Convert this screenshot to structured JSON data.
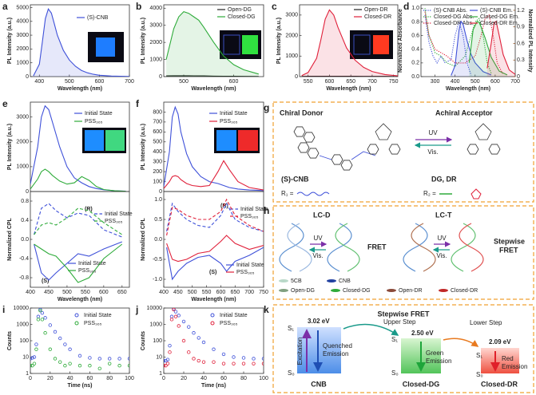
{
  "chart_data": [
    {
      "type": "line",
      "panel": "a",
      "xlabel": "Wavelength (nm)",
      "ylabel": "PL Intensity (a.u.)",
      "xlim": [
        370,
        700
      ],
      "xticks": [
        400,
        500,
        600,
        700
      ],
      "ylim": [
        0,
        5200
      ],
      "yticks": [
        0,
        1000,
        2000,
        3000,
        4000,
        5000
      ],
      "x": [
        380,
        400,
        410,
        420,
        430,
        440,
        450,
        460,
        480,
        500,
        520,
        540,
        560,
        580,
        600,
        640,
        700
      ],
      "series": [
        {
          "name": "(S)-CNB",
          "color": "#3f51d9",
          "fill": true,
          "values": [
            50,
            900,
            2500,
            4200,
            4900,
            4600,
            3800,
            3000,
            1900,
            1200,
            750,
            450,
            280,
            170,
            100,
            40,
            10
          ]
        }
      ]
    },
    {
      "type": "line",
      "panel": "b",
      "xlabel": "Wavelength (nm)",
      "ylabel": "PL Intensity (a.u.)",
      "xlim": [
        460,
        660
      ],
      "xticks": [
        500,
        600
      ],
      "ylim": [
        0,
        4200
      ],
      "yticks": [
        0,
        1000,
        2000,
        3000,
        4000
      ],
      "x": [
        465,
        480,
        490,
        500,
        510,
        520,
        530,
        540,
        560,
        580,
        600,
        620,
        650
      ],
      "series": [
        {
          "name": "Open-DG",
          "color": "#222222",
          "values": [
            40,
            50,
            50,
            50,
            50,
            45,
            40,
            40,
            30,
            25,
            20,
            15,
            10
          ]
        },
        {
          "name": "Closed-DG",
          "color": "#2eab3a",
          "fill": true,
          "values": [
            1000,
            2800,
            3500,
            3800,
            3700,
            3500,
            3300,
            2900,
            2000,
            1200,
            700,
            400,
            150
          ]
        }
      ]
    },
    {
      "type": "line",
      "panel": "c",
      "xlabel": "Wavelength (nm)",
      "ylabel": "PL Intensity (a.u.)",
      "xlim": [
        530,
        760
      ],
      "xticks": [
        550,
        600,
        650,
        700,
        750
      ],
      "ylim": [
        0,
        3500
      ],
      "yticks": [
        0,
        1000,
        2000,
        3000
      ],
      "x": [
        535,
        550,
        570,
        580,
        590,
        600,
        610,
        620,
        640,
        660,
        680,
        700,
        730,
        760
      ],
      "series": [
        {
          "name": "Open-DR",
          "color": "#222222",
          "values": [
            10,
            15,
            20,
            20,
            20,
            20,
            20,
            20,
            15,
            15,
            10,
            10,
            10,
            5
          ]
        },
        {
          "name": "Closed-DR",
          "color": "#e0203a",
          "fill": true,
          "values": [
            50,
            200,
            900,
            1800,
            2800,
            3250,
            3000,
            2400,
            1400,
            800,
            450,
            250,
            100,
            40
          ]
        }
      ]
    },
    {
      "type": "line",
      "panel": "d",
      "xlabel": "Wavelength (nm)",
      "ylabel": "Normalized Absorbance",
      "y2label": "Normalized PL Intensity",
      "xlim": [
        230,
        700
      ],
      "xticks": [
        300,
        400,
        500,
        600,
        700
      ],
      "ylim": [
        0,
        1.05
      ],
      "yticks": [
        {
          "value": 0,
          "label": "0.0"
        },
        0.2,
        0.4,
        0.6,
        0.8,
        {
          "value": 1,
          "label": "1.0"
        }
      ],
      "y2lim": [
        0,
        1.3
      ],
      "y2ticks": [
        0,
        0.3,
        0.6,
        0.9,
        1.2
      ],
      "series": [
        {
          "name": "(S)-CNB Abs.",
          "color": "#3f51d9",
          "dash": "dotted",
          "x": [
            250,
            270,
            290,
            310,
            330,
            350,
            380,
            400,
            420,
            440,
            460,
            480
          ],
          "values": [
            0.9,
            0.5,
            0.3,
            0.2,
            0.3,
            0.2,
            0.25,
            0.6,
            0.8,
            0.6,
            0.2,
            0.02
          ]
        },
        {
          "name": "Closed-DG Abs.",
          "color": "#2eab3a",
          "dash": "dotted",
          "x": [
            250,
            270,
            300,
            330,
            360,
            400,
            450,
            480,
            500,
            520,
            540,
            560,
            580
          ],
          "values": [
            1.0,
            0.6,
            0.35,
            0.3,
            0.2,
            0.15,
            0.3,
            0.6,
            0.8,
            0.85,
            0.6,
            0.2,
            0.05
          ]
        },
        {
          "name": "Closed-DR Abs.",
          "color": "#e0203a",
          "dash": "dotted",
          "x": [
            250,
            270,
            300,
            330,
            360,
            400,
            450,
            500,
            530,
            550,
            570,
            590,
            610,
            640
          ],
          "values": [
            0.95,
            0.6,
            0.4,
            0.35,
            0.3,
            0.2,
            0.2,
            0.3,
            0.6,
            0.85,
            0.9,
            0.6,
            0.2,
            0.03
          ]
        },
        {
          "name": "(S)-CNB Em.",
          "color": "#3f51d9",
          "fill": true,
          "axis": "y2",
          "x": [
            380,
            400,
            420,
            430,
            440,
            460,
            480,
            500,
            540,
            580
          ],
          "values": [
            0.02,
            0.2,
            0.85,
            1.0,
            0.95,
            0.65,
            0.4,
            0.25,
            0.09,
            0.03
          ]
        },
        {
          "name": "Closed-DG Em.",
          "color": "#2eab3a",
          "fill": true,
          "axis": "y2",
          "x": [
            470,
            490,
            510,
            520,
            530,
            550,
            580,
            620,
            660
          ],
          "values": [
            0.25,
            0.85,
            1.0,
            0.98,
            0.9,
            0.7,
            0.35,
            0.1,
            0.03
          ]
        },
        {
          "name": "Closed-DR Em.",
          "color": "#e0203a",
          "fill": true,
          "axis": "y2",
          "x": [
            560,
            580,
            595,
            605,
            620,
            640,
            670,
            700
          ],
          "values": [
            0.15,
            0.6,
            0.98,
            1.0,
            0.75,
            0.4,
            0.12,
            0.04
          ]
        }
      ]
    },
    {
      "type": "line",
      "panel": "e",
      "ylabel": "PL Intensity (a.u.)",
      "xlim": [
        400,
        670
      ],
      "ylim": [
        0,
        3600
      ],
      "yticks": [
        0,
        1000,
        2000,
        3000
      ],
      "x": [
        400,
        420,
        430,
        440,
        450,
        460,
        480,
        500,
        520,
        540,
        560,
        580,
        600,
        630,
        660
      ],
      "series": [
        {
          "name": "Initial State",
          "color": "#3f51d9",
          "values": [
            300,
            1800,
            3000,
            3450,
            3300,
            2800,
            1800,
            1000,
            550,
            350,
            200,
            120,
            70,
            30,
            15
          ]
        },
        {
          "name": "PSS₃₆₅",
          "color": "#2eab3a",
          "values": [
            100,
            500,
            800,
            900,
            800,
            650,
            420,
            300,
            350,
            600,
            450,
            200,
            80,
            30,
            10
          ]
        }
      ]
    },
    {
      "type": "line",
      "xlabel": "Wavelength (nm)",
      "ylabel": "Normalized CPL",
      "xlim": [
        400,
        670
      ],
      "xticks": [
        400,
        450,
        500,
        550,
        600,
        650
      ],
      "ylim": [
        -1.0,
        1.0
      ],
      "yticks": [
        -0.8,
        -0.4,
        {
          "value": 0,
          "label": "0.0"
        },
        0.4,
        0.8
      ],
      "annotations": [
        "(R)",
        "(S)"
      ],
      "x": [
        410,
        430,
        450,
        470,
        500,
        530,
        560,
        600,
        650
      ],
      "series": [
        {
          "name": "Initial State",
          "color": "#3f51d9",
          "dash": "dashed",
          "values": [
            0.1,
            0.65,
            0.75,
            0.6,
            0.45,
            0.55,
            0.5,
            0.2,
            0.05
          ]
        },
        {
          "name": "PSS₃₆₅",
          "color": "#2eab3a",
          "dash": "dashed",
          "values": [
            0.1,
            0.3,
            0.35,
            0.3,
            0.45,
            0.65,
            0.6,
            0.35,
            0.1
          ]
        },
        {
          "name": "Initial State",
          "color": "#3f51d9",
          "values": [
            -0.1,
            -0.7,
            -0.85,
            -0.7,
            -0.5,
            -0.3,
            -0.35,
            -0.2,
            -0.05
          ]
        },
        {
          "name": "PSS₃₆₅",
          "color": "#2eab3a",
          "values": [
            -0.1,
            -0.2,
            -0.3,
            -0.35,
            -0.6,
            -0.9,
            -0.8,
            -0.4,
            -0.1
          ]
        }
      ]
    },
    {
      "type": "line",
      "panel": "f",
      "ylabel": "PL Intensity (a.u.)",
      "xlim": [
        400,
        750
      ],
      "ylim": [
        0,
        900
      ],
      "yticks": [
        0,
        100,
        200,
        300,
        400,
        500,
        600,
        700,
        800
      ],
      "x": [
        400,
        420,
        430,
        440,
        450,
        460,
        480,
        500,
        530,
        560,
        590,
        610,
        630,
        660,
        700,
        750
      ],
      "series": [
        {
          "name": "Initial State",
          "color": "#3f51d9",
          "values": [
            50,
            400,
            750,
            850,
            780,
            600,
            380,
            250,
            150,
            100,
            80,
            60,
            40,
            25,
            15,
            10
          ]
        },
        {
          "name": "PSS₃₆₅",
          "color": "#e0203a",
          "values": [
            30,
            100,
            150,
            160,
            150,
            120,
            80,
            60,
            50,
            60,
            200,
            310,
            220,
            100,
            40,
            15
          ]
        }
      ]
    },
    {
      "type": "line",
      "xlabel": "Wavelength (nm)",
      "ylabel": "Normalized CPL",
      "xlim": [
        400,
        750
      ],
      "xticks": [
        400,
        450,
        500,
        550,
        600,
        650,
        700,
        750
      ],
      "ylim": [
        -1.2,
        1.2
      ],
      "yticks": [
        {
          "value": -1,
          "label": "-1.0"
        },
        -0.5,
        {
          "value": 0,
          "label": "0.0"
        },
        0.5,
        {
          "value": 1,
          "label": "1.0"
        }
      ],
      "annotations": [
        "(R)",
        "(S)"
      ],
      "x": [
        410,
        430,
        450,
        480,
        520,
        560,
        600,
        620,
        650,
        700,
        750
      ],
      "series": [
        {
          "name": "Initial State",
          "color": "#3f51d9",
          "dash": "dashed",
          "values": [
            0.2,
            0.9,
            0.7,
            0.5,
            0.35,
            0.3,
            0.6,
            0.9,
            0.5,
            0.3,
            0.2
          ]
        },
        {
          "name": "PSS₃₆₅",
          "color": "#e0203a",
          "dash": "dashed",
          "values": [
            0.1,
            0.8,
            0.75,
            0.6,
            0.5,
            0.5,
            0.7,
            1.0,
            0.6,
            0.35,
            0.2
          ]
        },
        {
          "name": "Initial State",
          "color": "#3f51d9",
          "values": [
            -0.2,
            -1.0,
            -0.8,
            -0.6,
            -0.45,
            -0.4,
            -0.6,
            -0.8,
            -0.55,
            -0.4,
            -0.2
          ]
        },
        {
          "name": "PSS₃₆₅",
          "color": "#e0203a",
          "values": [
            -0.1,
            -0.5,
            -0.55,
            -0.5,
            -0.35,
            -0.3,
            -0.05,
            0.1,
            -0.1,
            -0.25,
            -0.15
          ]
        }
      ]
    },
    {
      "type": "scatter",
      "panel": "i",
      "xlabel": "Time (ns)",
      "ylabel": "Counts",
      "yscale": "log",
      "xlim": [
        0,
        100
      ],
      "xticks": [
        0,
        20,
        40,
        60,
        80,
        100
      ],
      "ylim": [
        1,
        10000
      ],
      "yticks": [
        1,
        10,
        100,
        1000,
        10000
      ],
      "x": [
        0,
        2,
        4,
        6,
        8,
        10,
        12,
        15,
        20,
        25,
        30,
        35,
        40,
        50,
        60,
        70,
        80,
        90,
        100
      ],
      "series": [
        {
          "name": "Initial State",
          "color": "#3f51d9",
          "values": [
            8,
            9,
            10,
            60,
            3000,
            8000,
            5000,
            2500,
            900,
            350,
            140,
            60,
            30,
            12,
            9,
            8,
            8,
            8,
            8
          ]
        },
        {
          "name": "PSS₃₆₅",
          "color": "#2eab3a",
          "values": [
            3,
            3,
            4,
            30,
            2000,
            7000,
            2000,
            300,
            30,
            8,
            5,
            3,
            4,
            3,
            3,
            2,
            4,
            3,
            3
          ]
        }
      ]
    },
    {
      "type": "scatter",
      "panel": "j",
      "xlabel": "Time (ns)",
      "ylabel": "Counts",
      "yscale": "log",
      "xlim": [
        0,
        100
      ],
      "xticks": [
        0,
        20,
        40,
        60,
        80,
        100
      ],
      "ylim": [
        1,
        10000
      ],
      "yticks": [
        1,
        10,
        100,
        1000,
        10000
      ],
      "x": [
        0,
        2,
        4,
        6,
        8,
        10,
        12,
        15,
        20,
        25,
        30,
        35,
        40,
        50,
        60,
        70,
        80,
        90,
        100
      ],
      "series": [
        {
          "name": "Initial State",
          "color": "#3f51d9",
          "values": [
            6,
            6,
            7,
            50,
            3000,
            9000,
            6000,
            3500,
            1500,
            700,
            300,
            150,
            80,
            30,
            15,
            10,
            9,
            8,
            8
          ]
        },
        {
          "name": "PSS₃₆₅",
          "color": "#e0203a",
          "values": [
            3,
            3,
            4,
            20,
            2000,
            8000,
            3000,
            800,
            100,
            20,
            8,
            6,
            5,
            5,
            4,
            4,
            4,
            4,
            4
          ]
        }
      ]
    }
  ],
  "diagrams": {
    "g": {
      "panel": "g",
      "donor_title": "Chiral Donor",
      "acceptor_title": "Achiral Acceptor",
      "donor_name": "(S)-CNB",
      "acceptor_name": "DG, DR",
      "uv": "UV",
      "vis": "Vis.",
      "r1": "R₁ =",
      "r2": "R₂ ="
    },
    "h": {
      "panel": "h",
      "left_title": "LC-D",
      "right_title": "LC-T",
      "left_uv": "UV",
      "left_vis": "Vis.",
      "left_process": "FRET",
      "right_uv": "UV",
      "right_vis": "Vis.",
      "right_process": [
        "Stepwise",
        "FRET"
      ],
      "legend": [
        "5CB",
        "CNB",
        "Open-DG",
        "Closed-DG",
        "Open-DR",
        "Closed-DR"
      ]
    },
    "k": {
      "panel": "k",
      "title": "Stepwise FRET",
      "excitation": "Excitation",
      "upper_step": "Upper Step",
      "lower_step": "Lower Step",
      "states": [
        {
          "name": "CNB",
          "energy": "3.02 eV",
          "s1": "S₁",
          "s0": "S₀",
          "emission": [
            "Quenched",
            "Emission"
          ]
        },
        {
          "name": "Closed-DG",
          "energy": "2.50 eV",
          "s1": "S₁",
          "s0": "S₀",
          "emission": [
            "Green",
            "Emission"
          ]
        },
        {
          "name": "Closed-DR",
          "energy": "2.09 eV",
          "s1": "S₁",
          "s0": "S₀",
          "emission": [
            "Red",
            "Emission"
          ]
        }
      ]
    }
  }
}
